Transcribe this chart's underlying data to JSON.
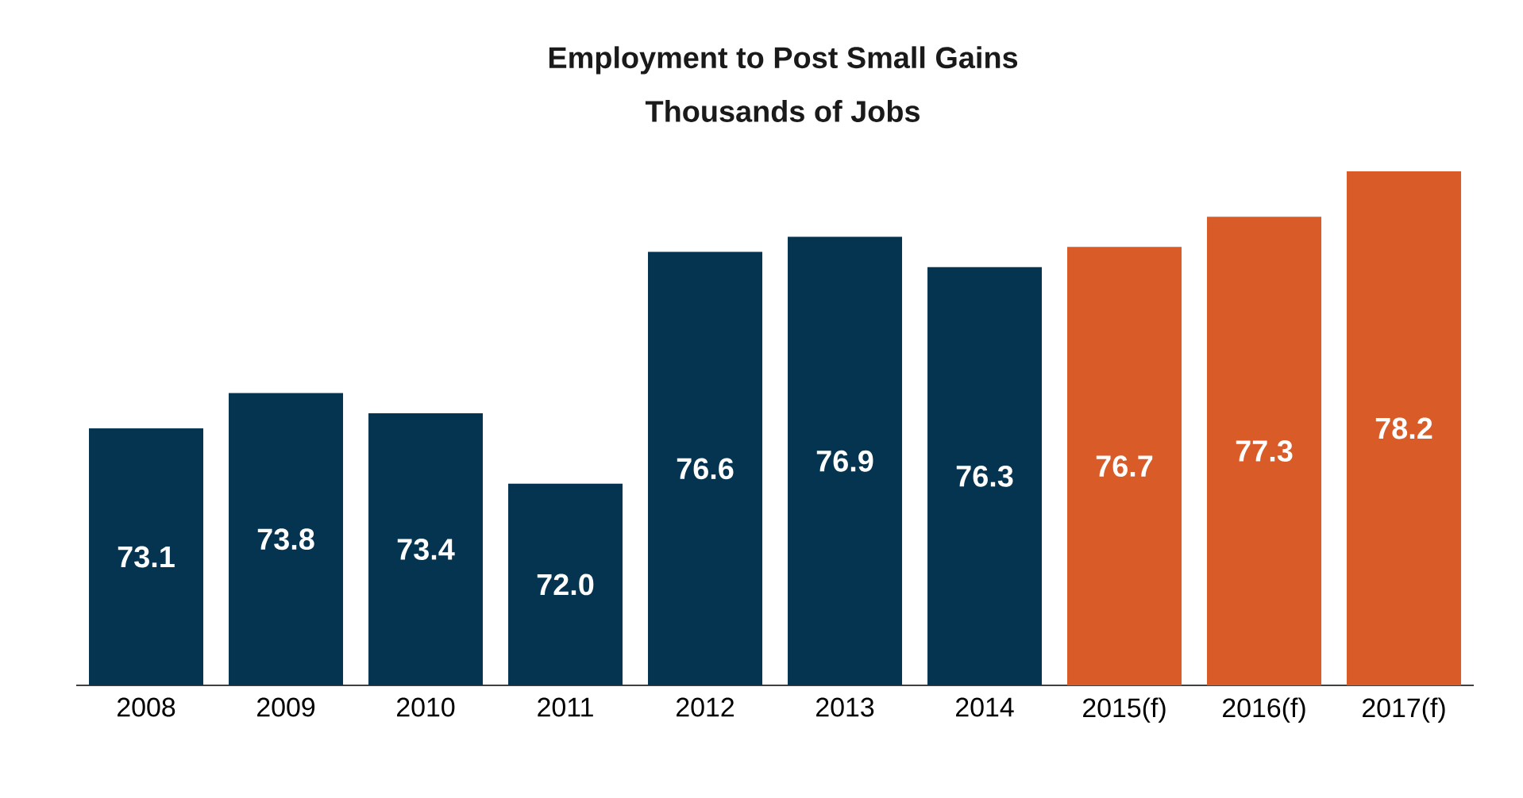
{
  "chart_data": {
    "type": "bar",
    "title": "Employment to Post Small Gains",
    "subtitle": "Thousands of Jobs",
    "categories": [
      "2008",
      "2009",
      "2010",
      "2011",
      "2012",
      "2013",
      "2014",
      "2015(f)",
      "2016(f)",
      "2017(f)"
    ],
    "values": [
      73.1,
      73.8,
      73.4,
      72.0,
      76.6,
      76.9,
      76.3,
      76.7,
      77.3,
      78.2
    ],
    "value_labels": [
      "73.1",
      "73.8",
      "73.4",
      "72.0",
      "76.6",
      "76.9",
      "76.3",
      "76.7",
      "77.3",
      "78.2"
    ],
    "colors": [
      "#053451",
      "#053451",
      "#053451",
      "#053451",
      "#053451",
      "#053451",
      "#053451",
      "#d95b27",
      "#d95b27",
      "#d95b27"
    ],
    "ylim": [
      68,
      78.2
    ],
    "tick_labels": "x"
  }
}
